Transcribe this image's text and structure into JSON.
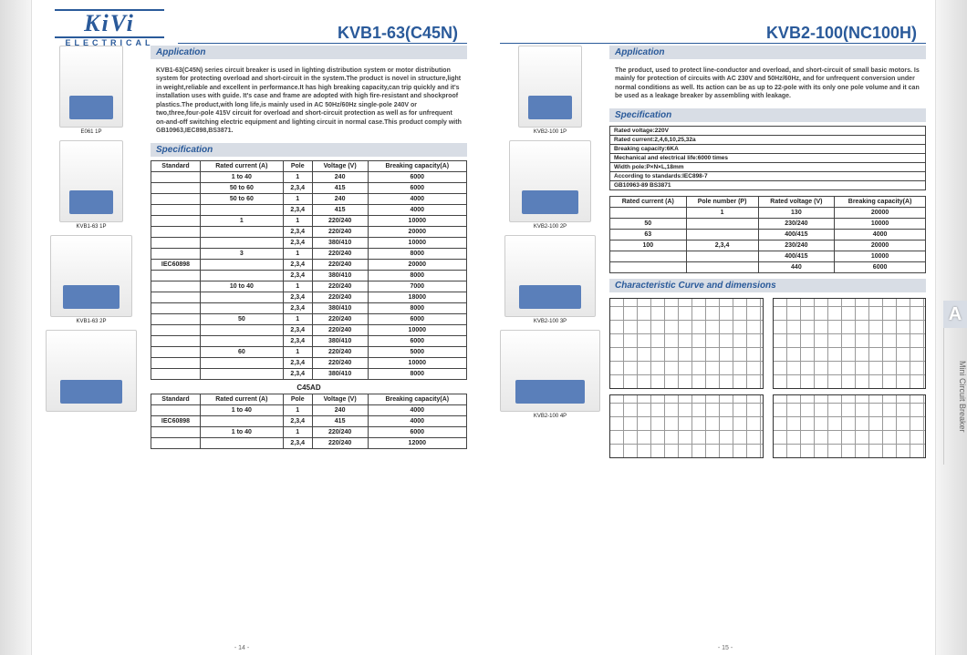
{
  "logo": {
    "brand": "KiVi",
    "sub": "ELECTRICAL"
  },
  "left": {
    "title": "KVB1-63(C45N)",
    "sections": {
      "app": "Application",
      "spec": "Specification"
    },
    "app_text": "KVB1-63(C45N) series circuit breaker is used in lighting distribution system or motor distribution system for protecting overload and short-circuit in the system.The product is novel in structure,light in weight,reliable and excellent in performance.It has high breaking capacity,can trip quickly and it's installation uses with guide. It's case and frame are adopted with high fire-resistant and shockproof plastics.The product,with long life,is mainly used in AC 50Hz/60Hz single-pole 240V or two,three,four-pole 415V circuit for overload and short-circuit protection as well as for unfrequent on-and-off switching electric equipment and lighting circuit in normal case.This product comply with GB10963,IEC898,BS3871.",
    "thumbs": [
      {
        "label": "E061 1P"
      },
      {
        "label": "KVB1-63 1P"
      },
      {
        "label": "KVB1-63 2P"
      },
      {
        "label": ""
      }
    ],
    "table1": {
      "headers": [
        "Standard",
        "Rated current (A)",
        "Pole",
        "Voltage (V)",
        "Breaking capacity(A)"
      ],
      "rows": [
        [
          "",
          "1 to 40",
          "1",
          "240",
          "6000"
        ],
        [
          "",
          "50 to 60",
          "2,3,4",
          "415",
          "6000"
        ],
        [
          "",
          "50 to 60",
          "1",
          "240",
          "4000"
        ],
        [
          "",
          "",
          "2,3,4",
          "415",
          "4000"
        ],
        [
          "",
          "1",
          "1",
          "220/240",
          "10000"
        ],
        [
          "",
          "",
          "2,3,4",
          "220/240",
          "20000"
        ],
        [
          "",
          "",
          "2,3,4",
          "380/410",
          "10000"
        ],
        [
          "",
          "3",
          "1",
          "220/240",
          "8000"
        ],
        [
          "IEC60898",
          "",
          "2,3,4",
          "220/240",
          "20000"
        ],
        [
          "",
          "",
          "2,3,4",
          "380/410",
          "8000"
        ],
        [
          "",
          "10 to 40",
          "1",
          "220/240",
          "7000"
        ],
        [
          "",
          "",
          "2,3,4",
          "220/240",
          "18000"
        ],
        [
          "",
          "",
          "2,3,4",
          "380/410",
          "8000"
        ],
        [
          "",
          "50",
          "1",
          "220/240",
          "6000"
        ],
        [
          "",
          "",
          "2,3,4",
          "220/240",
          "10000"
        ],
        [
          "",
          "",
          "2,3,4",
          "380/410",
          "6000"
        ],
        [
          "",
          "60",
          "1",
          "220/240",
          "5000"
        ],
        [
          "",
          "",
          "2,3,4",
          "220/240",
          "10000"
        ],
        [
          "",
          "",
          "2,3,4",
          "380/410",
          "8000"
        ]
      ]
    },
    "sub_title": "C45AD",
    "table2": {
      "headers": [
        "Standard",
        "Rated current (A)",
        "Pole",
        "Voltage (V)",
        "Breaking capacity(A)"
      ],
      "rows": [
        [
          "",
          "1 to 40",
          "1",
          "240",
          "4000"
        ],
        [
          "IEC60898",
          "",
          "2,3,4",
          "415",
          "4000"
        ],
        [
          "",
          "1 to 40",
          "1",
          "220/240",
          "6000"
        ],
        [
          "",
          "",
          "2,3,4",
          "220/240",
          "12000"
        ]
      ]
    },
    "page_num": "- 14 -"
  },
  "right": {
    "title": "KVB2-100(NC100H)",
    "sections": {
      "app": "Application",
      "spec": "Specification",
      "curve": "Characteristic Curve and dimensions"
    },
    "app_text": "The product, used to protect line-conductor and overload, and short-circuit of small basic motors. Is mainly for protection of circuits with AC 230V and 50Hz/60Hz, and for unfrequent conversion under normal conditions as well. Its action can be as up to 22-pole with its only one pole volume and it can be used as a leakage breaker by assembling with leakage.",
    "thumbs": [
      {
        "label": "KVB2-100 1P"
      },
      {
        "label": "KVB2-100 2P"
      },
      {
        "label": "KVB2-100 3P"
      },
      {
        "label": "KVB2-100 4P"
      }
    ],
    "spec_list": [
      "Rated voltage:220V",
      "Rated current:2,4,6,10,25,32a",
      "Breaking capacity:6KA",
      "Mechanical and electrical life:6000 times",
      "Width pole:P×N×L,18mm",
      "According to standards:IEC898-7",
      "                    GB10963-89 BS3871"
    ],
    "table": {
      "headers": [
        "Rated current (A)",
        "Pole number (P)",
        "Rated voltage (V)",
        "Breaking capacity(A)"
      ],
      "rows": [
        [
          "",
          "1",
          "130",
          "20000"
        ],
        [
          "50",
          "",
          "230/240",
          "10000"
        ],
        [
          "63",
          "",
          "400/415",
          "4000"
        ],
        [
          "100",
          "2,3,4",
          "230/240",
          "20000"
        ],
        [
          "",
          "",
          "400/415",
          "10000"
        ],
        [
          "",
          "",
          "440",
          "6000"
        ]
      ]
    },
    "page_num": "- 15 -"
  },
  "side_tab": {
    "letter": "A",
    "text": "Mini Circuit Breaker"
  },
  "colors": {
    "brand": "#2a5a9a",
    "section_bg": "#d8dde5",
    "breaker": "#5a7fba"
  }
}
